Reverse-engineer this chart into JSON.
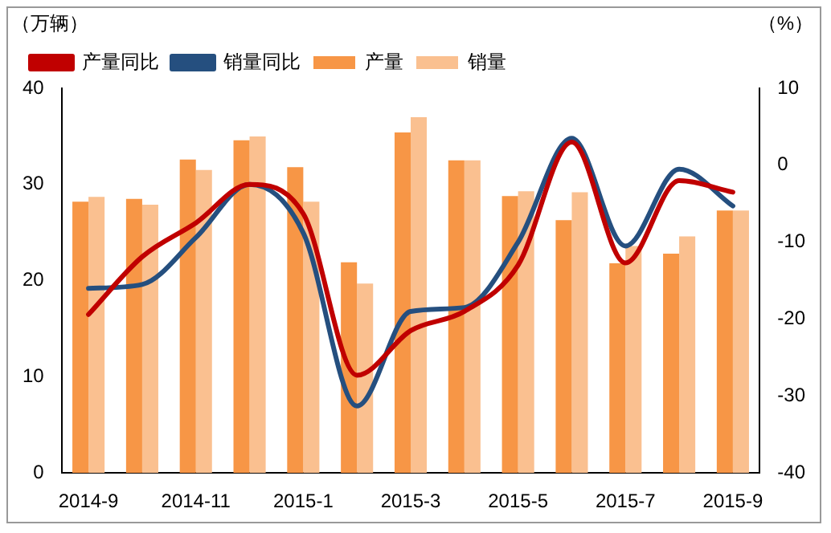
{
  "chart_data": {
    "type": "bar",
    "ylabel": "（万辆）",
    "y2label": "（%）",
    "categories": [
      "2014-9",
      null,
      "2014-11",
      null,
      "2015-1",
      null,
      "2015-3",
      null,
      "2015-5",
      null,
      "2015-7",
      null,
      "2015-9"
    ],
    "series": [
      {
        "name": "产量",
        "color": "#f79646",
        "values": [
          28.2,
          28.5,
          32.6,
          34.6,
          31.8,
          21.9,
          35.4,
          32.5,
          28.8,
          26.3,
          21.8,
          22.8,
          27.3
        ]
      },
      {
        "name": "销量",
        "color": "#fac090",
        "values": [
          28.7,
          27.9,
          31.5,
          35.0,
          28.2,
          19.7,
          37.0,
          32.5,
          29.3,
          29.2,
          23.6,
          24.6,
          27.3
        ]
      },
      {
        "name": "产量同比",
        "type": "line",
        "axis": "y2",
        "color": "#c00000",
        "values": [
          -19.4,
          -11.9,
          -7.5,
          -2.5,
          -6.3,
          -27.3,
          -21.5,
          -19,
          -13,
          3,
          -12.7,
          -2,
          -3.5
        ]
      },
      {
        "name": "销量同比",
        "type": "line",
        "axis": "y2",
        "color": "#254f7f",
        "values": [
          -16,
          -15.5,
          -9.4,
          -2.5,
          -8.8,
          -31.3,
          -19,
          -18.5,
          -10,
          3.5,
          -10.5,
          -0.5,
          -5.3
        ]
      }
    ],
    "ylim": [
      0,
      40
    ],
    "yticks": [
      0,
      10,
      20,
      30,
      40
    ],
    "y2lim": [
      -40,
      10
    ],
    "y2ticks": [
      -40,
      -30,
      -20,
      -10,
      0,
      10
    ],
    "grid": false,
    "legend": "top left",
    "marker": "none",
    "line_style": "solid"
  }
}
